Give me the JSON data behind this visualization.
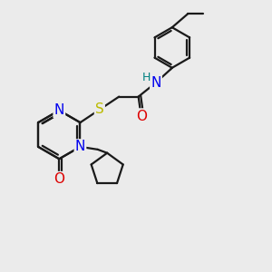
{
  "bg_color": "#ebebeb",
  "bond_color": "#1a1a1a",
  "N_color": "#0000ee",
  "O_color": "#dd0000",
  "S_color": "#bbbb00",
  "H_color": "#008080",
  "lw": 1.6,
  "fs": 11,
  "fs_small": 9,
  "xlim": [
    0,
    10
  ],
  "ylim": [
    0,
    10
  ]
}
